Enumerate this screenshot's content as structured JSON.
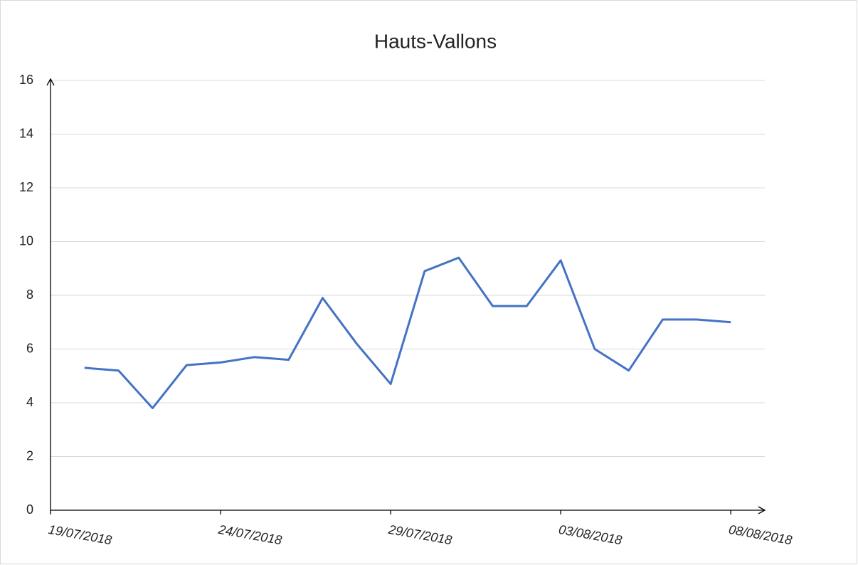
{
  "chart_data": {
    "type": "line",
    "title": "Hauts-Vallons",
    "x": [
      "20/07/2018",
      "21/07/2018",
      "22/07/2018",
      "23/07/2018",
      "24/07/2018",
      "25/07/2018",
      "26/07/2018",
      "27/07/2018",
      "28/07/2018",
      "29/07/2018",
      "30/07/2018",
      "31/07/2018",
      "01/08/2018",
      "02/08/2018",
      "03/08/2018",
      "04/08/2018",
      "05/08/2018",
      "06/08/2018",
      "07/08/2018",
      "08/08/2018"
    ],
    "series": [
      {
        "name": "Hauts-Vallons",
        "color": "#4472c4",
        "values": [
          5.3,
          5.2,
          3.8,
          5.4,
          5.5,
          5.7,
          5.6,
          7.9,
          6.2,
          4.7,
          8.9,
          9.4,
          7.6,
          7.6,
          9.3,
          6.0,
          5.2,
          7.1,
          7.1,
          7.0
        ]
      }
    ],
    "xlim": [
      "19/07/2018",
      "09/08/2018"
    ],
    "xticks": [
      "19/07/2018",
      "24/07/2018",
      "29/07/2018",
      "03/08/2018",
      "08/08/2018"
    ],
    "ylim": [
      0,
      16
    ],
    "yticks": [
      0,
      2,
      4,
      6,
      8,
      10,
      12,
      14,
      16
    ],
    "grid": true
  }
}
